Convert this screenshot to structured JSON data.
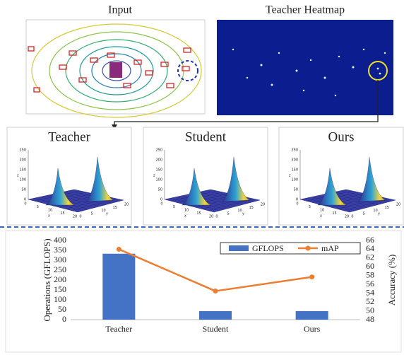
{
  "figure": {
    "input_title": "Input",
    "heatmap_title": "Teacher Heatmap",
    "panels": [
      "Teacher",
      "Student",
      "Ours"
    ]
  },
  "surface_axes": {
    "zticks": [
      0,
      50,
      100,
      150,
      200,
      250
    ],
    "xticks": [
      0,
      5,
      10,
      15,
      20
    ],
    "yticks": [
      0,
      5,
      10,
      15,
      20
    ],
    "zlabel": "z",
    "xlabel": "x",
    "ylabel": "y"
  },
  "chart_data": {
    "type": "bar-line",
    "categories": [
      "Teacher",
      "Student",
      "Ours"
    ],
    "y_label": "Operations (GFLOPS)",
    "y2_label": "Accuracy (%)",
    "series": [
      {
        "name": "GFLOPS",
        "color": "#4472c4",
        "values": [
          333,
          43,
          43
        ]
      },
      {
        "name": "mAP",
        "color": "#ed7d31",
        "axis": "y2",
        "values": [
          64,
          54.5,
          57.7
        ]
      }
    ],
    "ylim": [
      0,
      400
    ],
    "yticks": [
      0,
      50,
      100,
      150,
      200,
      250,
      300,
      350,
      400
    ],
    "y2lim": [
      48,
      66
    ],
    "y2ticks": [
      48,
      50,
      52,
      54,
      56,
      58,
      60,
      62,
      64,
      66
    ],
    "legend": "upper right"
  }
}
